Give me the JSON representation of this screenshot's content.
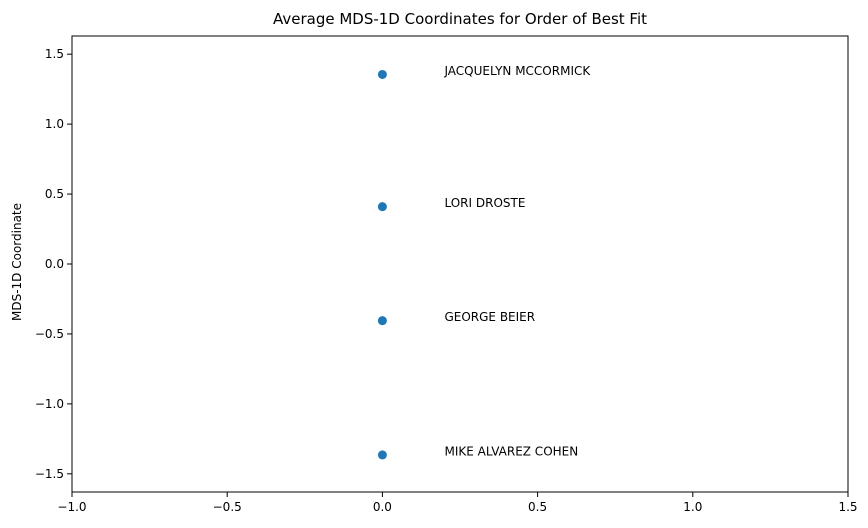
{
  "chart_data": {
    "type": "scatter",
    "title": "Average MDS-1D Coordinates for Order of Best Fit",
    "xlabel": "",
    "ylabel": "MDS-1D Coordinate",
    "xlim": [
      -1.0,
      1.5
    ],
    "ylim": [
      -1.63,
      1.63
    ],
    "xticks": [
      -1.0,
      -0.5,
      0.0,
      0.5,
      1.0,
      1.5
    ],
    "xtick_labels": [
      "−1.0",
      "−0.5",
      "0.0",
      "0.5",
      "1.0",
      "1.5"
    ],
    "yticks": [
      -1.5,
      -1.0,
      -0.5,
      0.0,
      0.5,
      1.0,
      1.5
    ],
    "ytick_labels": [
      "−1.5",
      "−1.0",
      "−0.5",
      "0.0",
      "0.5",
      "1.0",
      "1.5"
    ],
    "grid": false,
    "marker_color": "#1f77b4",
    "points": [
      {
        "x": 0.0,
        "y": 1.355,
        "label": "JACQUELYN MCCORMICK",
        "label_x": 0.2,
        "label_y": 1.355
      },
      {
        "x": 0.0,
        "y": 0.41,
        "label": "LORI DROSTE",
        "label_x": 0.2,
        "label_y": 0.41
      },
      {
        "x": 0.0,
        "y": -0.405,
        "label": "GEORGE BEIER",
        "label_x": 0.2,
        "label_y": -0.405
      },
      {
        "x": 0.0,
        "y": -1.365,
        "label": "MIKE ALVAREZ COHEN",
        "label_x": 0.2,
        "label_y": -1.365
      }
    ]
  }
}
